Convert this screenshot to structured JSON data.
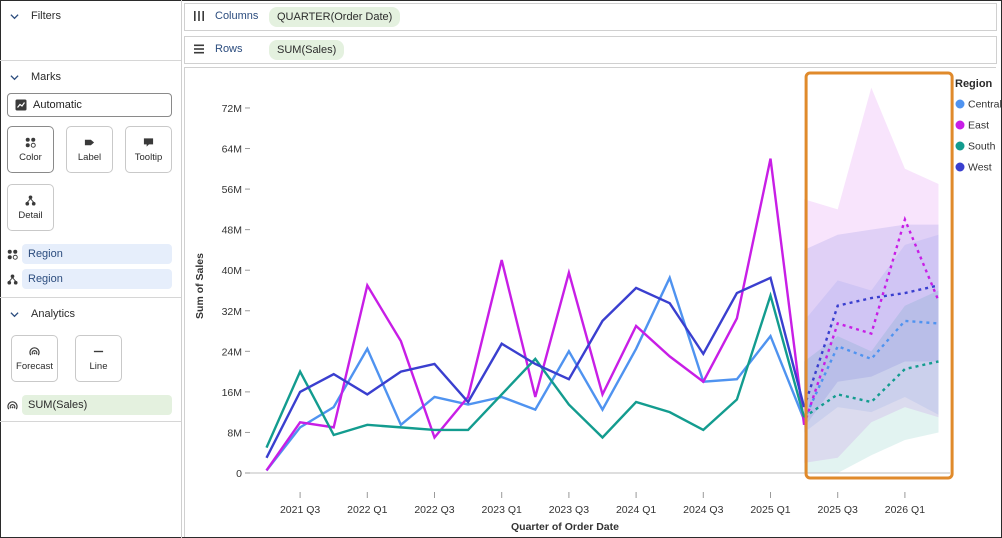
{
  "sidebar": {
    "filters_title": "Filters",
    "marks_title": "Marks",
    "mark_type": "Automatic",
    "buttons": [
      "Color",
      "Label",
      "Tooltip",
      "Detail"
    ],
    "color_pill": "Region",
    "detail_pill": "Region",
    "analytics_title": "Analytics",
    "analytics_buttons": [
      "Forecast",
      "Line"
    ],
    "forecast_pill": "SUM(Sales)"
  },
  "shelves": {
    "columns_label": "Columns",
    "columns_value": "QUARTER(Order Date)",
    "rows_label": "Rows",
    "rows_value": "SUM(Sales)"
  },
  "legend": {
    "title": "Region",
    "items": [
      {
        "name": "Central",
        "color": "#4f93f0"
      },
      {
        "name": "East",
        "color": "#c81ee6"
      },
      {
        "name": "South",
        "color": "#139c8f"
      },
      {
        "name": "West",
        "color": "#3a3fcf"
      }
    ]
  },
  "highlight_color": "#e08a2b",
  "chart_data": {
    "type": "line",
    "xlabel": "Quarter of Order Date",
    "ylabel": "Sum of Sales",
    "x_ticks": [
      "2021 Q3",
      "2022 Q1",
      "2022 Q3",
      "2023 Q1",
      "2023 Q3",
      "2024 Q1",
      "2024 Q3",
      "2025 Q1",
      "2025 Q3",
      "2026 Q1"
    ],
    "y_ticks": [
      "0",
      "8M",
      "16M",
      "24M",
      "32M",
      "40M",
      "48M",
      "56M",
      "64M",
      "72M"
    ],
    "ylim": [
      0,
      76
    ],
    "y_unit": "M",
    "x_quarters": [
      "2021 Q2",
      "2021 Q3",
      "2021 Q4",
      "2022 Q1",
      "2022 Q2",
      "2022 Q3",
      "2022 Q4",
      "2023 Q1",
      "2023 Q2",
      "2023 Q3",
      "2023 Q4",
      "2024 Q1",
      "2024 Q2",
      "2024 Q3",
      "2024 Q4",
      "2025 Q1",
      "2025 Q2",
      "2025 Q3",
      "2025 Q4",
      "2026 Q1",
      "2026 Q2"
    ],
    "actual_count": 17,
    "series": [
      {
        "name": "Central",
        "color": "#4f93f0",
        "values": [
          0.5,
          9,
          13,
          24.5,
          9.5,
          15,
          13.5,
          15,
          12.5,
          24,
          12.5,
          24.5,
          38.5,
          18,
          18.5,
          27,
          10.5
        ],
        "forecast": [
          10.5,
          25,
          22.5,
          30,
          29.5
        ],
        "band_low": [
          8,
          13,
          12,
          15,
          11.5
        ],
        "band_high": [
          30,
          38,
          36,
          45,
          47
        ]
      },
      {
        "name": "East",
        "color": "#c81ee6",
        "values": [
          0.5,
          10,
          9,
          37,
          26,
          7,
          15,
          42,
          15,
          39.5,
          15.5,
          29,
          23,
          18,
          30.5,
          62,
          9.5
        ],
        "forecast": [
          9.5,
          29.5,
          27.5,
          50,
          34
        ],
        "band_low": [
          2,
          3,
          10,
          13,
          11
        ],
        "band_high": [
          54,
          52,
          76,
          60,
          57
        ]
      },
      {
        "name": "South",
        "color": "#139c8f",
        "values": [
          5,
          20,
          7.5,
          9.5,
          9,
          8.5,
          8.5,
          15.5,
          22.5,
          13.5,
          7,
          14,
          12,
          8.5,
          14.5,
          35,
          11
        ],
        "forecast": [
          11,
          15.5,
          14,
          20.5,
          22
        ],
        "band_low": [
          0,
          0,
          3.5,
          6.5,
          8
        ],
        "band_high": [
          22,
          27,
          24,
          33,
          36
        ]
      },
      {
        "name": "West",
        "color": "#3a3fcf",
        "values": [
          3,
          16,
          19.5,
          15.5,
          20,
          21.5,
          14,
          25.5,
          21.5,
          18.5,
          30,
          36.5,
          33.5,
          23.5,
          35.5,
          38.5,
          13
        ],
        "forecast": [
          13,
          33,
          34.5,
          35.5,
          37
        ],
        "band_low": [
          9,
          18,
          19,
          22,
          22
        ],
        "band_high": [
          44,
          47,
          48,
          49,
          49
        ]
      }
    ]
  }
}
